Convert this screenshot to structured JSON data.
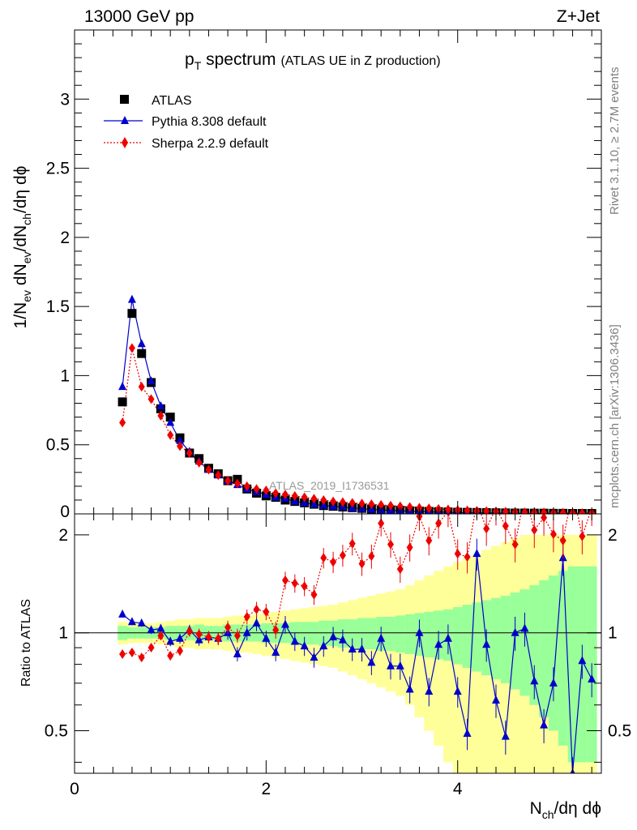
{
  "header": {
    "left": "13000 GeV pp",
    "right": "Z+Jet",
    "title_main": "p",
    "title_sub": "T",
    "title_rest": " spectrum",
    "title_note": "(ATLAS UE in Z production)",
    "side_top": "Rivet 3.1.10, ≥ 2.7M events",
    "side_bottom": "mcplots.cern.ch [arXiv:1306.3436]",
    "analysis_tag": "ATLAS_2019_I1736531"
  },
  "axes": {
    "ylabel_main": "1/N_ev dN_ev/dN_ch/dη dϕ",
    "ylabel_ratio": "Ratio to ATLAS",
    "xlabel": "N_ch/dη dϕ"
  },
  "legend": [
    {
      "label": "ATLAS",
      "color": "#000000",
      "marker": "square"
    },
    {
      "label": "Pythia 8.308 default",
      "color": "#0000cc",
      "marker": "triangle"
    },
    {
      "label": "Sherpa 2.2.9 default",
      "color": "#ee0000",
      "marker": "diamond"
    }
  ],
  "chart_data": [
    {
      "type": "scatter",
      "panel": "main",
      "xlim": [
        0,
        5.5
      ],
      "ylim": [
        0,
        3.5
      ],
      "yticks": [
        0.5,
        1,
        1.5,
        2,
        2.5,
        3
      ],
      "x": [
        0.5,
        0.6,
        0.7,
        0.8,
        0.9,
        1.0,
        1.1,
        1.2,
        1.3,
        1.4,
        1.5,
        1.6,
        1.7,
        1.8,
        1.9,
        2.0,
        2.1,
        2.2,
        2.3,
        2.4,
        2.5,
        2.6,
        2.7,
        2.8,
        2.9,
        3.0,
        3.1,
        3.2,
        3.3,
        3.4,
        3.5,
        3.6,
        3.7,
        3.8,
        3.9,
        4.0,
        4.1,
        4.2,
        4.3,
        4.4,
        4.5,
        4.6,
        4.7,
        4.8,
        4.9,
        5.0,
        5.1,
        5.2,
        5.3,
        5.4
      ],
      "series": [
        {
          "name": "ATLAS",
          "values": [
            0.81,
            1.45,
            1.16,
            0.95,
            0.76,
            0.7,
            0.55,
            0.44,
            0.4,
            0.33,
            0.29,
            0.24,
            0.25,
            0.18,
            0.15,
            0.13,
            0.12,
            0.1,
            0.09,
            0.08,
            0.07,
            0.06,
            0.055,
            0.05,
            0.045,
            0.04,
            0.035,
            0.03,
            0.028,
            0.025,
            0.022,
            0.02,
            0.018,
            0.016,
            0.014,
            0.012,
            0.011,
            0.01,
            0.009,
            0.008,
            0.007,
            0.006,
            0.006,
            0.005,
            0.005,
            0.004,
            0.004,
            0.003,
            0.003,
            0.003
          ]
        },
        {
          "name": "Pythia 8.308 default",
          "values": [
            0.92,
            1.55,
            1.23,
            0.96,
            0.78,
            0.66,
            0.53,
            0.45,
            0.38,
            0.32,
            0.28,
            0.24,
            0.21,
            0.18,
            0.16,
            0.14,
            0.12,
            0.11,
            0.09,
            0.08,
            0.07,
            0.06,
            0.055,
            0.05,
            0.042,
            0.037,
            0.032,
            0.028,
            0.025,
            0.022,
            0.019,
            0.017,
            0.015,
            0.013,
            0.011,
            0.01,
            0.009,
            0.008,
            0.007,
            0.006,
            0.005,
            0.005,
            0.004,
            0.004,
            0.003,
            0.003,
            0.003,
            0.002,
            0.002,
            0.002
          ]
        },
        {
          "name": "Sherpa 2.2.9 default",
          "values": [
            0.66,
            1.2,
            0.92,
            0.83,
            0.71,
            0.57,
            0.49,
            0.44,
            0.37,
            0.32,
            0.28,
            0.24,
            0.22,
            0.2,
            0.18,
            0.17,
            0.15,
            0.14,
            0.13,
            0.12,
            0.11,
            0.1,
            0.09,
            0.085,
            0.08,
            0.075,
            0.07,
            0.065,
            0.06,
            0.055,
            0.05,
            0.045,
            0.04,
            0.036,
            0.032,
            0.028,
            0.025,
            0.022,
            0.02,
            0.018,
            0.016,
            0.014,
            0.012,
            0.011,
            0.01,
            0.009,
            0.008,
            0.007,
            0.006,
            0.006
          ]
        }
      ]
    },
    {
      "type": "line",
      "panel": "ratio",
      "xlim": [
        0,
        5.5
      ],
      "ylim": [
        0.37,
        2.32
      ],
      "yscale": "log",
      "yticks": [
        0.5,
        1,
        2
      ],
      "xticks": [
        0,
        2,
        4
      ],
      "reference_line": 1,
      "x": [
        0.5,
        0.6,
        0.7,
        0.8,
        0.9,
        1.0,
        1.1,
        1.2,
        1.3,
        1.4,
        1.5,
        1.6,
        1.7,
        1.8,
        1.9,
        2.0,
        2.1,
        2.2,
        2.3,
        2.4,
        2.5,
        2.6,
        2.7,
        2.8,
        2.9,
        3.0,
        3.1,
        3.2,
        3.3,
        3.4,
        3.5,
        3.6,
        3.7,
        3.8,
        3.9,
        4.0,
        4.1,
        4.2,
        4.3,
        4.4,
        4.5,
        4.6,
        4.7,
        4.8,
        4.9,
        5.0,
        5.1,
        5.2,
        5.3,
        5.4
      ],
      "series": [
        {
          "name": "Pythia 8.308 default",
          "values": [
            1.14,
            1.08,
            1.07,
            1.02,
            1.03,
            0.94,
            0.96,
            1.02,
            0.95,
            0.97,
            0.96,
            1.0,
            0.86,
            1.0,
            1.07,
            0.96,
            0.87,
            1.06,
            0.94,
            0.91,
            0.84,
            0.91,
            0.97,
            0.95,
            0.89,
            0.89,
            0.81,
            0.96,
            0.79,
            0.79,
            0.67,
            1.0,
            0.66,
            0.92,
            0.96,
            0.66,
            0.49,
            1.75,
            0.92,
            0.62,
            0.48,
            1.0,
            1.03,
            0.71,
            0.52,
            0.7,
            1.7,
            0.37,
            0.82,
            0.72
          ]
        },
        {
          "name": "Sherpa 2.2.9 default",
          "values": [
            0.86,
            0.87,
            0.84,
            0.9,
            0.98,
            0.85,
            0.88,
            1.01,
            0.99,
            0.97,
            0.96,
            1.04,
            0.98,
            1.12,
            1.18,
            1.16,
            1.02,
            1.45,
            1.42,
            1.39,
            1.31,
            1.7,
            1.65,
            1.73,
            1.88,
            1.63,
            1.72,
            2.17,
            1.87,
            1.57,
            1.83,
            2.28,
            1.92,
            2.17,
            2.36,
            1.75,
            1.71,
            2.53,
            2.09,
            2.42,
            2.13,
            1.87,
            2.67,
            2.07,
            2.26,
            2.01,
            1.92,
            2.73,
            1.98,
            2.42
          ]
        }
      ],
      "bands": {
        "inner_color": "#99ff99",
        "outer_color": "#ffff99",
        "inner_halfwidth": [
          0.05,
          0.04,
          0.04,
          0.04,
          0.04,
          0.05,
          0.05,
          0.05,
          0.06,
          0.05,
          0.05,
          0.06,
          0.06,
          0.06,
          0.06,
          0.07,
          0.07,
          0.07,
          0.08,
          0.08,
          0.08,
          0.09,
          0.09,
          0.1,
          0.1,
          0.11,
          0.11,
          0.12,
          0.12,
          0.13,
          0.14,
          0.15,
          0.16,
          0.17,
          0.18,
          0.2,
          0.22,
          0.24,
          0.26,
          0.28,
          0.3,
          0.33,
          0.36,
          0.4,
          0.45,
          0.5,
          0.55,
          0.6,
          0.6,
          0.6
        ],
        "outer_halfwidth": [
          0.08,
          0.07,
          0.07,
          0.07,
          0.08,
          0.09,
          0.1,
          0.1,
          0.11,
          0.11,
          0.11,
          0.12,
          0.13,
          0.13,
          0.14,
          0.15,
          0.16,
          0.17,
          0.18,
          0.19,
          0.2,
          0.21,
          0.22,
          0.24,
          0.26,
          0.28,
          0.3,
          0.32,
          0.34,
          0.36,
          0.4,
          0.45,
          0.5,
          0.55,
          0.6,
          0.65,
          0.7,
          0.75,
          0.8,
          0.85,
          0.9,
          0.95,
          1.0,
          1.0,
          1.0,
          1.0,
          1.0,
          1.0,
          1.0,
          1.0
        ]
      }
    }
  ]
}
